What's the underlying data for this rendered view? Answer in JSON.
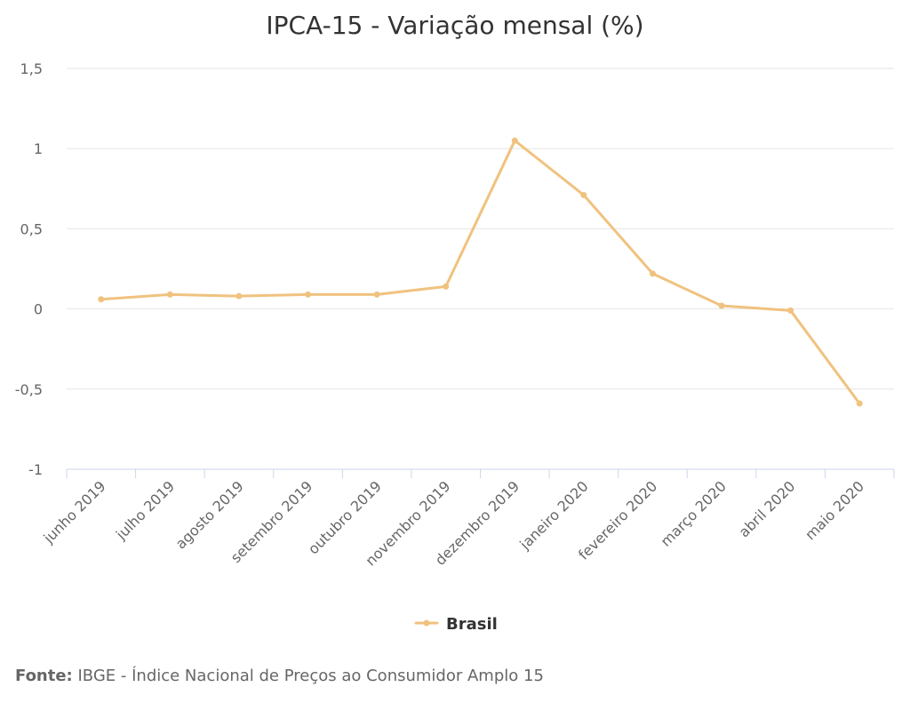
{
  "chart_data": {
    "type": "line",
    "title": "IPCA-15 - Variação mensal (%)",
    "categories": [
      "junho 2019",
      "julho 2019",
      "agosto 2019",
      "setembro 2019",
      "outubro 2019",
      "novembro 2019",
      "dezembro 2019",
      "janeiro 2020",
      "fevereiro 2020",
      "março 2020",
      "abril 2020",
      "maio 2020"
    ],
    "series": [
      {
        "name": "Brasil",
        "color": "#f0c27f",
        "values": [
          0.06,
          0.09,
          0.08,
          0.09,
          0.09,
          0.14,
          1.05,
          0.71,
          0.22,
          0.02,
          -0.01,
          -0.59
        ]
      }
    ],
    "ylim": [
      -1,
      1.5
    ],
    "yticks": [
      -1,
      -0.5,
      0,
      0.5,
      1,
      1.5
    ],
    "ytick_labels": [
      "-1",
      "-0,5",
      "0",
      "0,5",
      "1",
      "1,5"
    ],
    "grid": true,
    "legend": "bottom-center"
  },
  "source": {
    "label": "Fonte:",
    "text": "IBGE - Índice Nacional de Preços ao Consumidor Amplo 15"
  }
}
